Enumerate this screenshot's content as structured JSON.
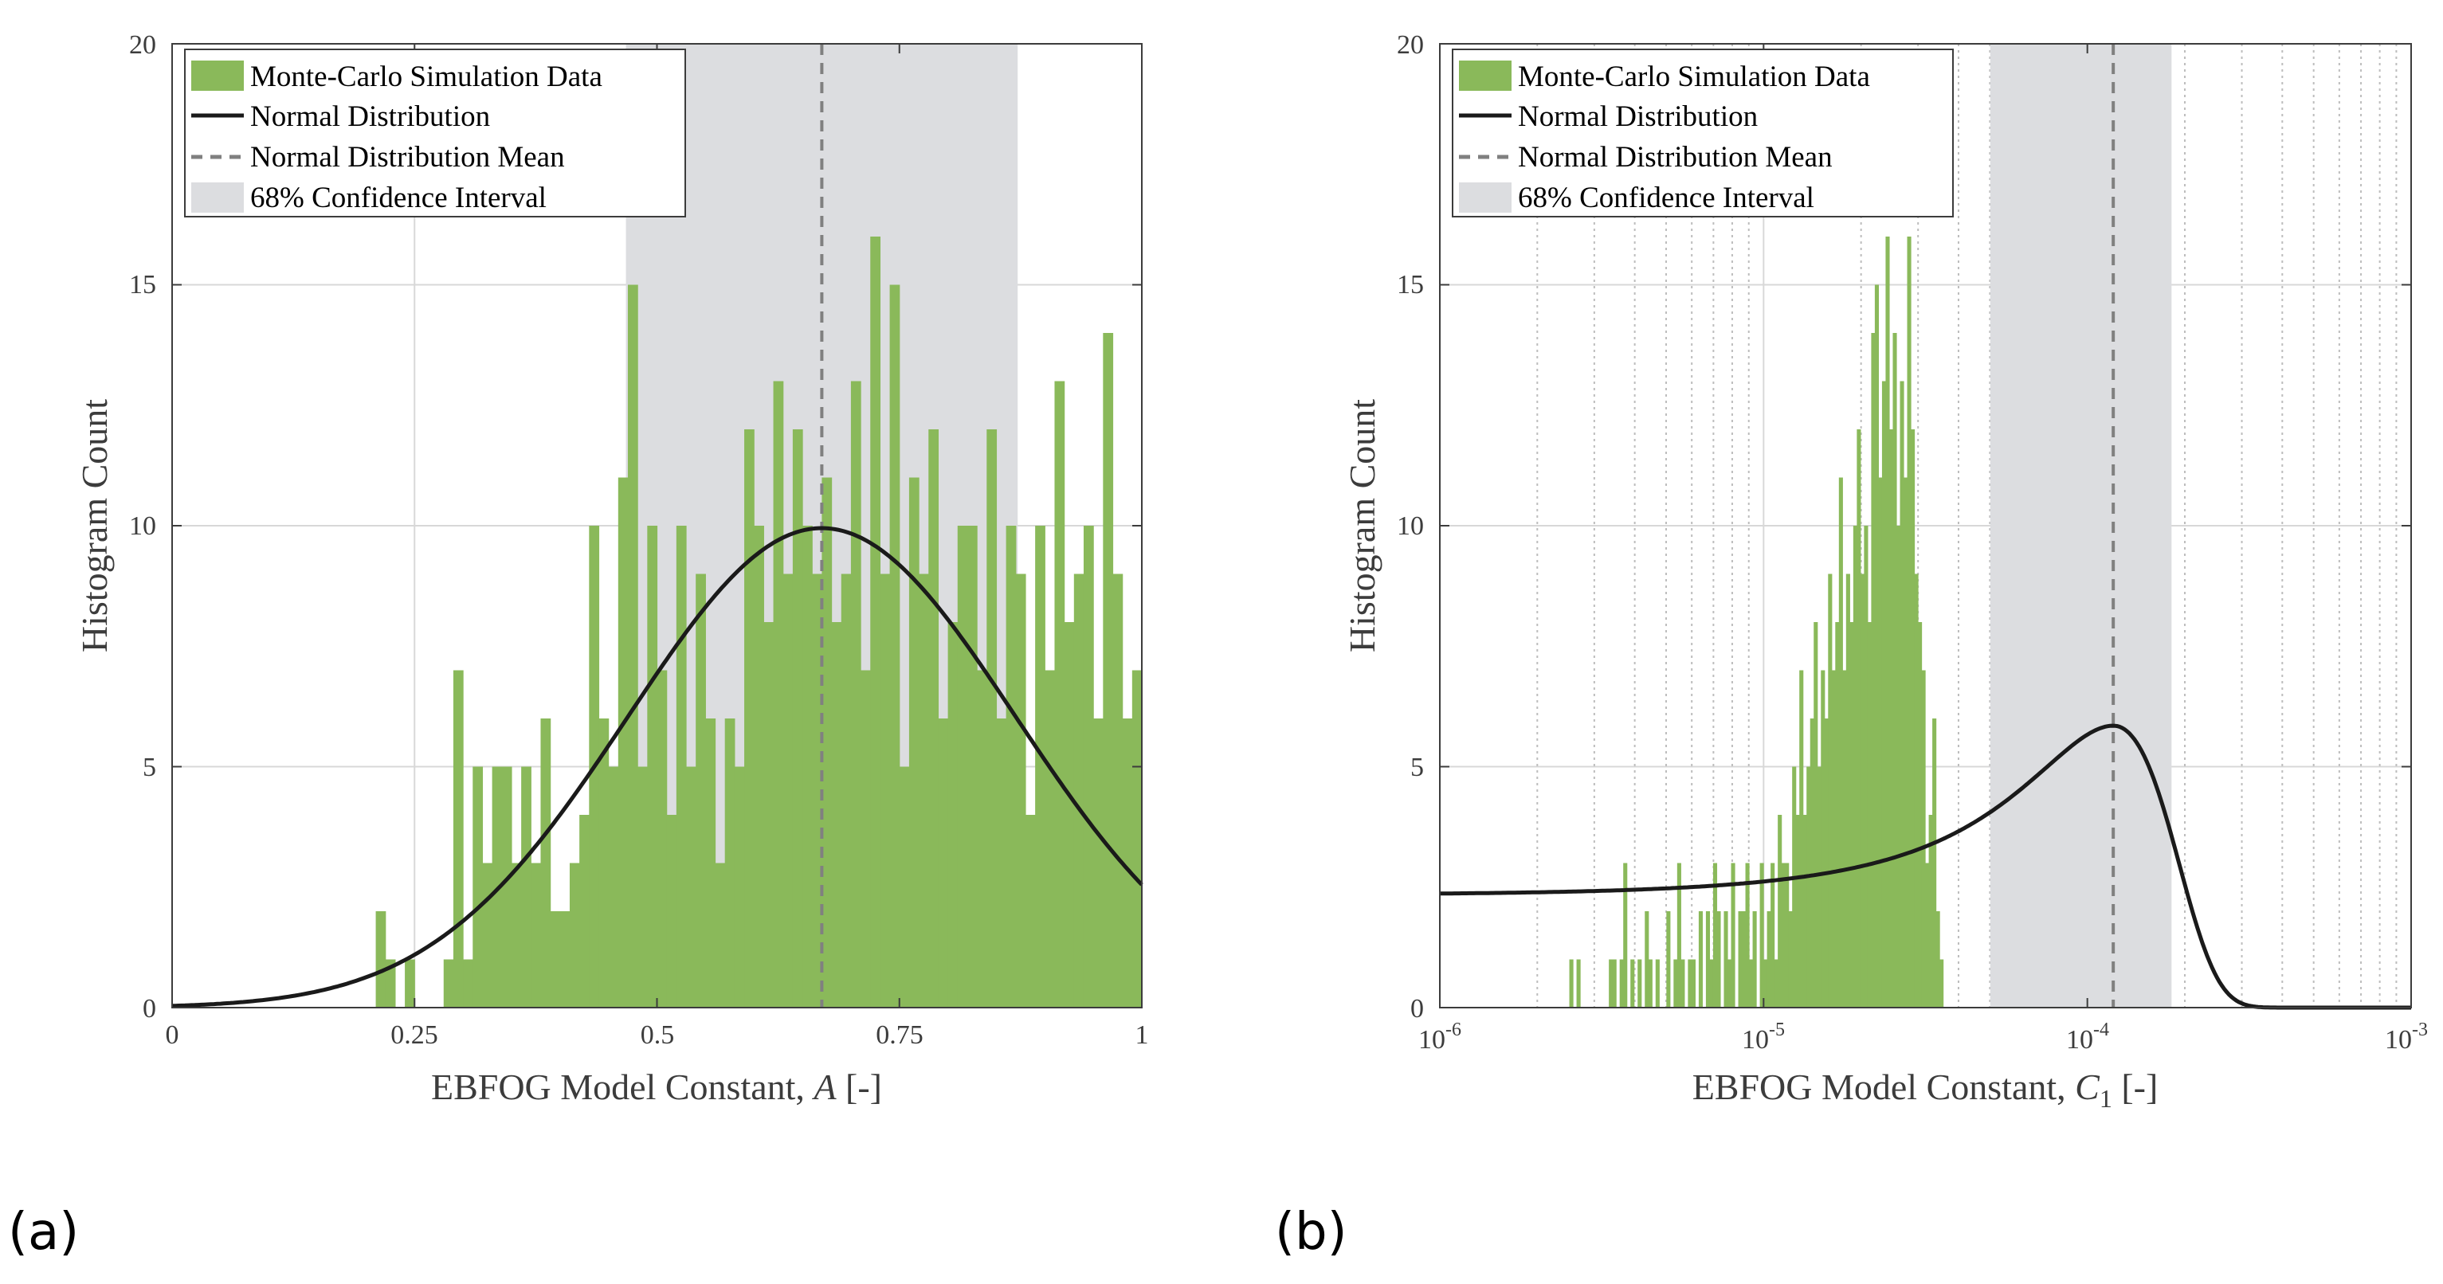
{
  "panels": [
    {
      "label": "(a)"
    },
    {
      "label": "(b)"
    }
  ],
  "colors": {
    "bar": "#8ab95a",
    "curve": "#1a1a1a",
    "mean": "#808080",
    "ci": "#dcdde0",
    "axis": "#3c3c3c",
    "grid": "#d8d8d8"
  },
  "chart_data": [
    {
      "type": "bar",
      "xscale": "linear",
      "xlabel_prefix": "EBFOG Model Constant, ",
      "xlabel_var": "A",
      "xlabel_sub": "",
      "xlabel_suffix": " [-]",
      "ylabel": "Histogram Count",
      "xlim": [
        0,
        1
      ],
      "ylim": [
        0,
        20
      ],
      "xticks": [
        0,
        0.25,
        0.5,
        0.75,
        1
      ],
      "xtick_labels": [
        "0",
        "0.25",
        "0.5",
        "0.75",
        "1"
      ],
      "yticks": [
        0,
        5,
        10,
        15,
        20
      ],
      "ytick_labels": [
        "0",
        "5",
        "10",
        "15",
        "20"
      ],
      "grid": true,
      "legend": {
        "position": "top-left",
        "entries": [
          {
            "kind": "bar",
            "label": "Monte-Carlo Simulation Data"
          },
          {
            "kind": "line",
            "label": "Normal Distribution"
          },
          {
            "kind": "dash",
            "label": "Normal Distribution Mean"
          },
          {
            "kind": "ci",
            "label": "68% Confidence Interval"
          }
        ]
      },
      "ci": [
        0.468,
        0.872
      ],
      "mean": 0.67,
      "normal_curve": {
        "mu": 0.67,
        "sigma": 0.2,
        "peak": 9.95
      },
      "bins": {
        "start": 0.0,
        "width": 0.01,
        "counts": [
          0,
          0,
          0,
          0,
          0,
          0,
          0,
          0,
          0,
          0,
          0,
          0,
          0,
          0,
          0,
          0,
          0,
          0,
          0,
          0,
          0,
          2,
          1,
          0,
          1,
          0,
          0,
          0,
          1,
          7,
          1,
          5,
          3,
          5,
          5,
          3,
          5,
          3,
          6,
          2,
          2,
          3,
          4,
          10,
          6,
          5,
          11,
          15,
          5,
          10,
          7,
          4,
          10,
          5,
          9,
          6,
          3,
          6,
          5,
          12,
          10,
          8,
          13,
          9,
          12,
          10,
          9,
          11,
          8,
          9,
          13,
          7,
          16,
          9,
          15,
          5,
          11,
          9,
          12,
          6,
          8,
          10,
          10,
          7,
          12,
          6,
          10,
          9,
          4,
          10,
          7,
          13,
          8,
          9,
          10,
          6,
          14,
          9,
          6,
          7
        ]
      }
    },
    {
      "type": "bar",
      "xscale": "log",
      "xlabel_prefix": "EBFOG Model Constant, ",
      "xlabel_var": "C",
      "xlabel_sub": "1",
      "xlabel_suffix": " [-]",
      "ylabel": "Histogram Count",
      "xlim_log10": [
        -6,
        -3
      ],
      "ylim": [
        0,
        20
      ],
      "xticks_log10": [
        -6,
        -5,
        -4,
        -3
      ],
      "xtick_base": "10",
      "xtick_exponents": [
        "-6",
        "-5",
        "-4",
        "-3"
      ],
      "yticks": [
        0,
        5,
        10,
        15,
        20
      ],
      "ytick_labels": [
        "0",
        "5",
        "10",
        "15",
        "20"
      ],
      "grid": true,
      "legend": {
        "position": "top-left",
        "entries": [
          {
            "kind": "bar",
            "label": "Monte-Carlo Simulation Data"
          },
          {
            "kind": "line",
            "label": "Normal Distribution"
          },
          {
            "kind": "dash",
            "label": "Normal Distribution Mean"
          },
          {
            "kind": "ci",
            "label": "68% Confidence Interval"
          }
        ]
      },
      "ci_log10": [
        -4.3,
        -3.74
      ],
      "mean_log10": -3.92,
      "normal_curve_log10": {
        "mu": -3.92,
        "sigma": 0.1775,
        "peak": 5.85,
        "amp": 0.0001,
        "offset": 1.3
      },
      "bins": {
        "start_log10": -5.6,
        "width_log10": 0.0111,
        "counts": [
          1,
          0,
          1,
          0,
          0,
          0,
          0,
          0,
          0,
          0,
          0,
          1,
          1,
          0,
          1,
          3,
          0,
          1,
          0,
          1,
          0,
          2,
          1,
          0,
          1,
          0,
          0,
          2,
          0,
          1,
          3,
          1,
          0,
          1,
          1,
          0,
          2,
          0,
          2,
          1,
          3,
          2,
          0,
          2,
          1,
          3,
          0,
          2,
          2,
          3,
          1,
          2,
          0,
          3,
          1,
          2,
          3,
          1,
          4,
          3,
          3,
          2,
          5,
          4,
          7,
          4,
          5,
          6,
          8,
          5,
          7,
          6,
          9,
          7,
          8,
          11,
          7,
          9,
          8,
          10,
          12,
          9,
          10,
          8,
          14,
          15,
          11,
          13,
          16,
          12,
          14,
          10,
          13,
          11,
          16,
          12,
          9,
          8,
          7,
          3,
          4,
          6,
          2,
          1,
          0,
          0
        ]
      }
    }
  ]
}
